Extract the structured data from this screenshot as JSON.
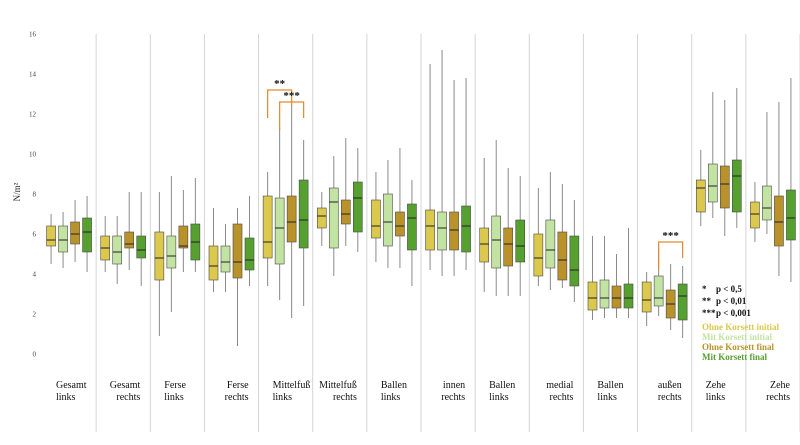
{
  "chart_data": {
    "type": "box",
    "ylabel": "N/m²",
    "ylim": [
      0,
      16
    ],
    "yticks": [
      0,
      2,
      4,
      6,
      8,
      10,
      12,
      14,
      16
    ],
    "grid": false,
    "legend_position": "right",
    "categories": [
      [
        "Gesamt",
        "links"
      ],
      [
        "Gesamt",
        "rechts"
      ],
      [
        "Ferse",
        "links"
      ],
      [
        "Ferse",
        "rechts"
      ],
      [
        "Mittelfuß",
        "links"
      ],
      [
        "Mittelfuß",
        "rechts"
      ],
      [
        "Ballen",
        "links"
      ],
      [
        "innen",
        "rechts"
      ],
      [
        "Ballen",
        "links"
      ],
      [
        "medial",
        "rechts"
      ],
      [
        "Ballen",
        "links"
      ],
      [
        "außen",
        "rechts"
      ],
      [
        "Zehe",
        "links"
      ],
      [
        "Zehe",
        "rechts"
      ]
    ],
    "series": [
      {
        "name": "Ohne Korsett initial",
        "color": "#dcc84c",
        "boxes": [
          {
            "min": 4.5,
            "q1": 5.4,
            "median": 5.7,
            "q3": 6.4,
            "max": 7.0
          },
          {
            "min": 4.1,
            "q1": 4.7,
            "median": 5.3,
            "q3": 5.9,
            "max": 6.9
          },
          {
            "min": 0.9,
            "q1": 3.7,
            "median": 4.8,
            "q3": 6.1,
            "max": 8.1
          },
          {
            "min": 3.1,
            "q1": 3.7,
            "median": 4.4,
            "q3": 5.4,
            "max": 7.3
          },
          {
            "min": 3.4,
            "q1": 4.8,
            "median": 5.6,
            "q3": 7.9,
            "max": 9.1
          },
          {
            "min": 5.4,
            "q1": 6.3,
            "median": 6.9,
            "q3": 7.3,
            "max": 8.1
          },
          {
            "min": 4.6,
            "q1": 5.8,
            "median": 6.4,
            "q3": 7.7,
            "max": 9.1
          },
          {
            "min": 4.2,
            "q1": 5.2,
            "median": 6.4,
            "q3": 7.2,
            "max": 14.5
          },
          {
            "min": 3.1,
            "q1": 4.6,
            "median": 5.5,
            "q3": 6.3,
            "max": 9.8
          },
          {
            "min": 3.4,
            "q1": 3.9,
            "median": 4.8,
            "q3": 6.0,
            "max": 8.3
          },
          {
            "min": 1.7,
            "q1": 2.2,
            "median": 2.8,
            "q3": 3.6,
            "max": 5.9
          },
          {
            "min": 1.4,
            "q1": 2.1,
            "median": 2.7,
            "q3": 3.6,
            "max": 4.1
          },
          {
            "min": 6.4,
            "q1": 7.1,
            "median": 8.3,
            "q3": 8.7,
            "max": 10.2
          },
          {
            "min": 5.6,
            "q1": 6.3,
            "median": 7.0,
            "q3": 7.6,
            "max": 8.6
          }
        ]
      },
      {
        "name": "Mit Korsett initial",
        "color": "#c2e3a1",
        "boxes": [
          {
            "min": 4.3,
            "q1": 5.1,
            "median": 5.7,
            "q3": 6.4,
            "max": 7.1
          },
          {
            "min": 3.5,
            "q1": 4.5,
            "median": 5.1,
            "q3": 5.9,
            "max": 6.9
          },
          {
            "min": 2.1,
            "q1": 4.3,
            "median": 4.9,
            "q3": 5.9,
            "max": 8.9
          },
          {
            "min": 3.1,
            "q1": 4.1,
            "median": 4.6,
            "q3": 5.4,
            "max": 6.5
          },
          {
            "min": 2.7,
            "q1": 4.5,
            "median": 6.3,
            "q3": 7.8,
            "max": 11.3
          },
          {
            "min": 3.9,
            "q1": 5.3,
            "median": 7.6,
            "q3": 8.3,
            "max": 9.9
          },
          {
            "min": 4.3,
            "q1": 5.4,
            "median": 6.6,
            "q3": 8.0,
            "max": 9.7
          },
          {
            "min": 3.9,
            "q1": 5.2,
            "median": 6.3,
            "q3": 7.1,
            "max": 15.2
          },
          {
            "min": 2.9,
            "q1": 4.3,
            "median": 5.7,
            "q3": 6.9,
            "max": 10.7
          },
          {
            "min": 3.2,
            "q1": 4.3,
            "median": 5.2,
            "q3": 6.7,
            "max": 9.1
          },
          {
            "min": 1.8,
            "q1": 2.3,
            "median": 2.8,
            "q3": 3.7,
            "max": 5.9
          },
          {
            "min": 1.9,
            "q1": 2.4,
            "median": 2.8,
            "q3": 3.9,
            "max": 5.3
          },
          {
            "min": 6.8,
            "q1": 7.6,
            "median": 8.4,
            "q3": 9.5,
            "max": 13.1
          },
          {
            "min": 6.0,
            "q1": 6.7,
            "median": 7.3,
            "q3": 8.4,
            "max": 12.1
          }
        ]
      },
      {
        "name": "Ohne Korsett final",
        "color": "#b9922a",
        "boxes": [
          {
            "min": 4.6,
            "q1": 5.5,
            "median": 6.0,
            "q3": 6.6,
            "max": 7.7
          },
          {
            "min": 4.2,
            "q1": 5.3,
            "median": 5.5,
            "q3": 6.1,
            "max": 8.1
          },
          {
            "min": 4.1,
            "q1": 5.3,
            "median": 5.4,
            "q3": 6.4,
            "max": 8.2
          },
          {
            "min": 0.4,
            "q1": 3.8,
            "median": 4.6,
            "q3": 6.5,
            "max": 7.3
          },
          {
            "min": 1.8,
            "q1": 5.6,
            "median": 6.6,
            "q3": 7.9,
            "max": 12.4
          },
          {
            "min": 5.4,
            "q1": 6.5,
            "median": 7.0,
            "q3": 7.7,
            "max": 10.8
          },
          {
            "min": 4.3,
            "q1": 5.9,
            "median": 6.4,
            "q3": 7.1,
            "max": 10.3
          },
          {
            "min": 3.9,
            "q1": 5.2,
            "median": 6.2,
            "q3": 7.1,
            "max": 13.7
          },
          {
            "min": 2.9,
            "q1": 4.4,
            "median": 5.5,
            "q3": 6.3,
            "max": 9.3
          },
          {
            "min": 3.3,
            "q1": 3.7,
            "median": 4.7,
            "q3": 6.1,
            "max": 8.5
          },
          {
            "min": 1.8,
            "q1": 2.3,
            "median": 2.8,
            "q3": 3.4,
            "max": 5.0
          },
          {
            "min": 1.2,
            "q1": 1.8,
            "median": 2.5,
            "q3": 3.2,
            "max": 4.5
          },
          {
            "min": 5.9,
            "q1": 7.3,
            "median": 8.5,
            "q3": 9.4,
            "max": 12.7
          },
          {
            "min": 3.9,
            "q1": 5.4,
            "median": 6.6,
            "q3": 7.9,
            "max": 12.6
          }
        ]
      },
      {
        "name": "Mit Korsett final",
        "color": "#55a02f",
        "boxes": [
          {
            "min": 4.1,
            "q1": 5.1,
            "median": 6.1,
            "q3": 6.8,
            "max": 7.9
          },
          {
            "min": 3.4,
            "q1": 4.8,
            "median": 5.2,
            "q3": 5.9,
            "max": 8.1
          },
          {
            "min": 4.1,
            "q1": 4.7,
            "median": 5.6,
            "q3": 6.5,
            "max": 8.8
          },
          {
            "min": 3.4,
            "q1": 4.2,
            "median": 4.7,
            "q3": 5.8,
            "max": 7.9
          },
          {
            "min": 2.4,
            "q1": 5.3,
            "median": 6.7,
            "q3": 8.7,
            "max": 10.7
          },
          {
            "min": 5.1,
            "q1": 6.1,
            "median": 7.8,
            "q3": 8.6,
            "max": 10.3
          },
          {
            "min": 3.4,
            "q1": 5.2,
            "median": 6.8,
            "q3": 7.5,
            "max": 8.7
          },
          {
            "min": 4.2,
            "q1": 5.1,
            "median": 6.4,
            "q3": 7.4,
            "max": 13.8
          },
          {
            "min": 2.9,
            "q1": 4.6,
            "median": 5.4,
            "q3": 6.7,
            "max": 8.9
          },
          {
            "min": 2.6,
            "q1": 3.4,
            "median": 4.2,
            "q3": 5.9,
            "max": 7.7
          },
          {
            "min": 1.8,
            "q1": 2.3,
            "median": 2.8,
            "q3": 3.5,
            "max": 6.3
          },
          {
            "min": 0.8,
            "q1": 1.7,
            "median": 2.9,
            "q3": 3.5,
            "max": 4.4
          },
          {
            "min": 6.3,
            "q1": 7.1,
            "median": 8.9,
            "q3": 9.7,
            "max": 13.3
          },
          {
            "min": 3.6,
            "q1": 5.7,
            "median": 6.8,
            "q3": 8.2,
            "max": 13.8
          }
        ]
      }
    ],
    "annotations": [
      {
        "label": "**",
        "category_index": 4,
        "from_series": 0,
        "to_series": 2,
        "y": 13.2
      },
      {
        "label": "***",
        "category_index": 4,
        "from_series": 1,
        "to_series": 3,
        "y": 12.6
      },
      {
        "label": "***",
        "category_index": 11,
        "from_series": 1,
        "to_series": 3,
        "y": 5.6
      }
    ],
    "significance_legend": [
      {
        "symbol": "*",
        "text": "p < 0,5"
      },
      {
        "symbol": "**",
        "text": "p < 0,01"
      },
      {
        "symbol": "***",
        "text": "p < 0,001"
      }
    ]
  }
}
